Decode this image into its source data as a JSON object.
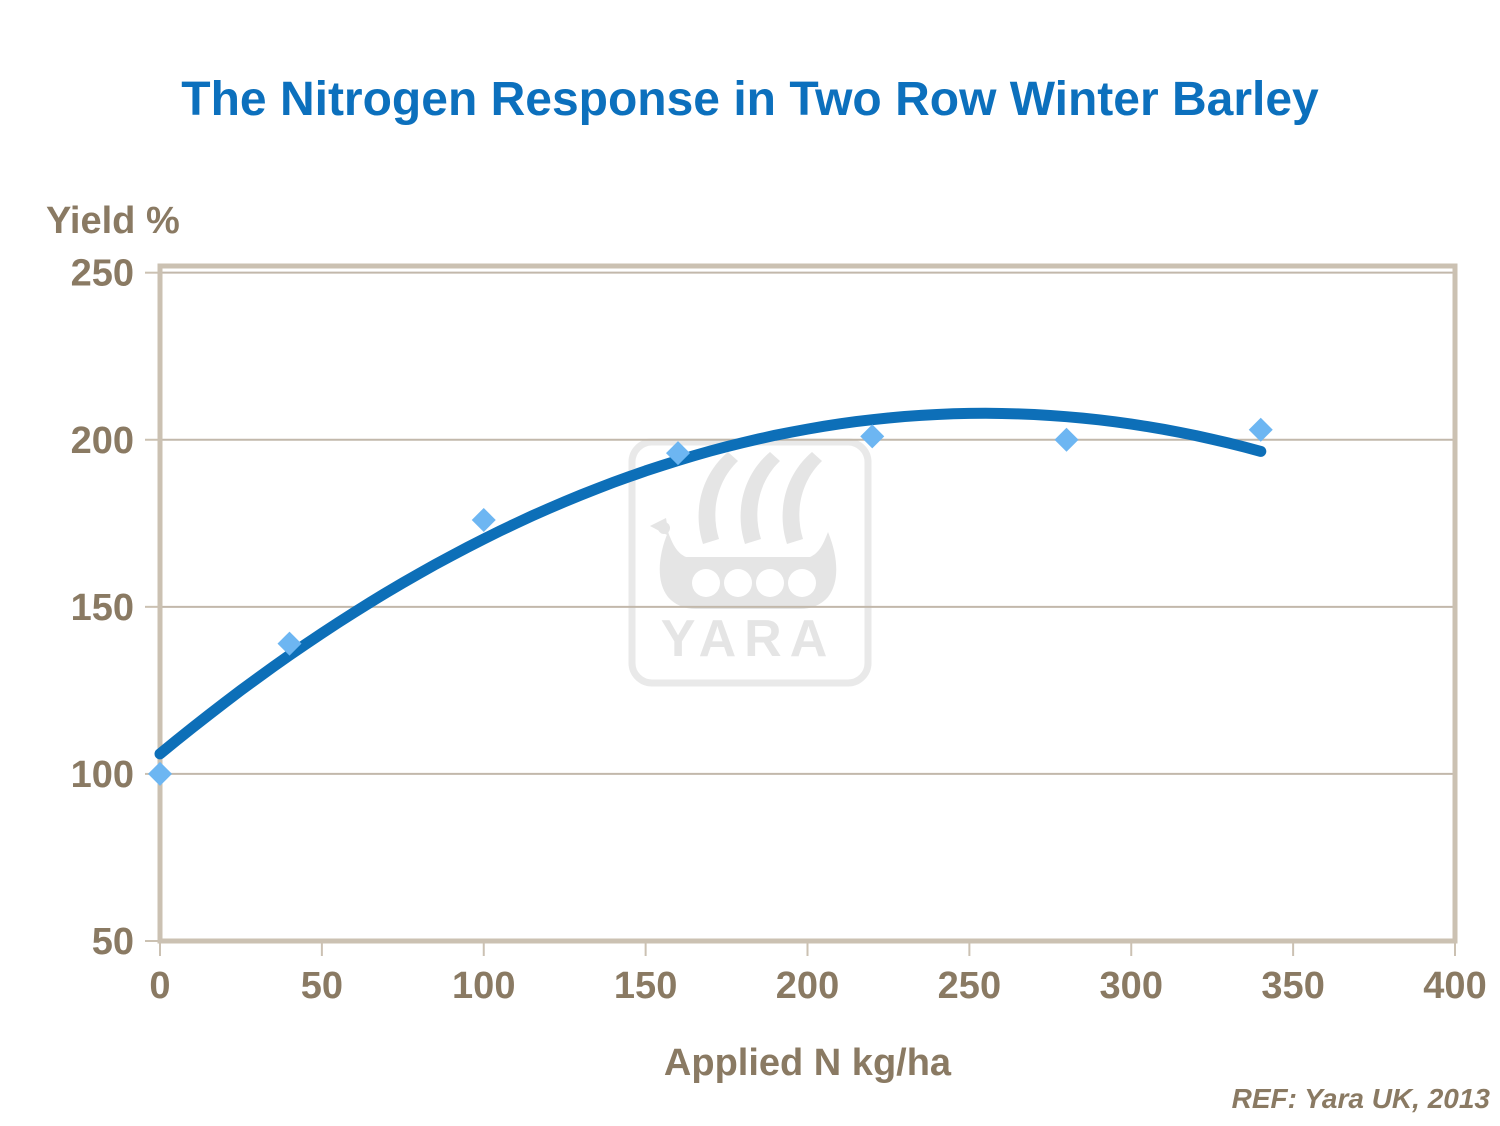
{
  "page": {
    "reference": "REF: Yara UK, 2013",
    "watermark_text": "YARA"
  },
  "chart_data": {
    "type": "scatter",
    "title": "The Nitrogen Response in Two Row Winter Barley",
    "xlabel": "Applied N kg/ha",
    "ylabel": "Yield %",
    "x": [
      0,
      40,
      100,
      160,
      220,
      280,
      340
    ],
    "y": [
      100,
      139,
      176,
      196,
      201,
      200,
      203
    ],
    "xticks": [
      0,
      50,
      100,
      150,
      200,
      250,
      300,
      350,
      400
    ],
    "yticks": [
      50,
      100,
      150,
      200,
      250
    ],
    "xlim": [
      0,
      400
    ],
    "ylim": [
      50,
      252
    ],
    "grid": "horizontal",
    "legend": "none",
    "marker": "diamond",
    "trendline": {
      "type": "quadratic",
      "a": 106,
      "b": 0.8,
      "c": -0.00157,
      "x_start": 0,
      "x_end": 340
    },
    "colors": {
      "title": "#0c70bd",
      "curve": "#0d6fb8",
      "marker": "#6db6f2",
      "axis_text": "#8a7a63",
      "border": "#cbc1b2",
      "gridline": "#c2b8ab",
      "watermark": "#e7e7e7"
    }
  }
}
